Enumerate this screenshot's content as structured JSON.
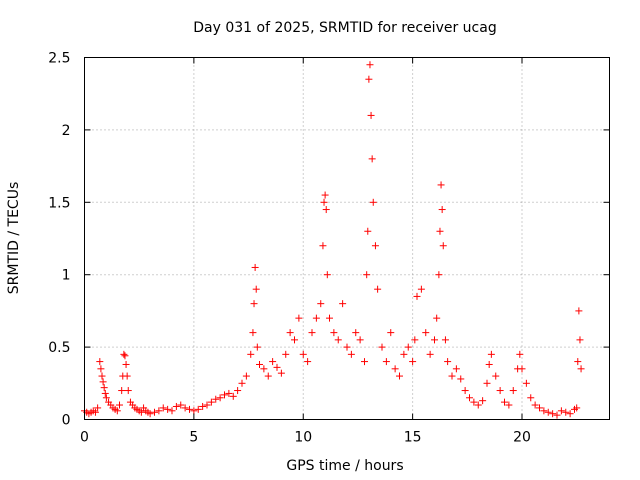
{
  "chart_data": {
    "type": "scatter",
    "title": "Day 031 of 2025, SRMTID for receiver ucag",
    "xlabel": "GPS time / hours",
    "ylabel": "SRMTID / TECUs",
    "xlim": [
      0,
      24
    ],
    "ylim": [
      0,
      2.5
    ],
    "x_ticks": [
      0,
      5,
      10,
      15,
      20
    ],
    "x_tick_labels": [
      "0",
      "5",
      "10",
      "15",
      "20"
    ],
    "y_ticks": [
      0,
      0.5,
      1,
      1.5,
      2,
      2.5
    ],
    "y_tick_labels": [
      "0",
      "0.5",
      "1",
      "1.5",
      "2",
      "2.5"
    ],
    "grid": true,
    "marker": "+",
    "colors": {
      "points": "#ff0000",
      "axes": "#000000",
      "grid": "#a0a0a0"
    },
    "series": [
      {
        "name": "SRMTID",
        "x": [
          0.0,
          0.1,
          0.2,
          0.3,
          0.4,
          0.5,
          0.6,
          0.7,
          0.75,
          0.8,
          0.85,
          0.9,
          0.95,
          1.0,
          1.1,
          1.2,
          1.3,
          1.4,
          1.5,
          1.6,
          1.7,
          1.75,
          1.8,
          1.85,
          1.9,
          1.95,
          2.0,
          2.1,
          2.2,
          2.3,
          2.4,
          2.5,
          2.6,
          2.7,
          2.8,
          2.9,
          3.0,
          3.2,
          3.4,
          3.6,
          3.8,
          4.0,
          4.2,
          4.4,
          4.6,
          4.8,
          5.0,
          5.2,
          5.4,
          5.6,
          5.8,
          6.0,
          6.2,
          6.4,
          6.6,
          6.8,
          7.0,
          7.2,
          7.4,
          7.6,
          7.7,
          7.75,
          7.8,
          7.85,
          7.9,
          8.0,
          8.2,
          8.4,
          8.6,
          8.8,
          9.0,
          9.2,
          9.4,
          9.6,
          9.8,
          10.0,
          10.2,
          10.4,
          10.6,
          10.8,
          10.9,
          10.95,
          11.0,
          11.05,
          11.1,
          11.2,
          11.4,
          11.6,
          11.8,
          12.0,
          12.2,
          12.4,
          12.6,
          12.8,
          12.9,
          12.95,
          13.0,
          13.05,
          13.1,
          13.15,
          13.2,
          13.3,
          13.4,
          13.6,
          13.8,
          14.0,
          14.2,
          14.4,
          14.6,
          14.8,
          15.0,
          15.1,
          15.2,
          15.4,
          15.6,
          15.8,
          16.0,
          16.1,
          16.2,
          16.25,
          16.3,
          16.35,
          16.4,
          16.5,
          16.6,
          16.8,
          17.0,
          17.2,
          17.4,
          17.6,
          17.8,
          18.0,
          18.2,
          18.4,
          18.5,
          18.6,
          18.8,
          19.0,
          19.2,
          19.4,
          19.6,
          19.8,
          19.9,
          20.0,
          20.2,
          20.4,
          20.6,
          20.8,
          21.0,
          21.2,
          21.4,
          21.6,
          21.8,
          22.0,
          22.2,
          22.4,
          22.5,
          22.55,
          22.6,
          22.65,
          22.7
        ],
        "values": [
          0.06,
          0.05,
          0.04,
          0.05,
          0.06,
          0.05,
          0.08,
          0.4,
          0.35,
          0.3,
          0.26,
          0.22,
          0.18,
          0.15,
          0.12,
          0.1,
          0.08,
          0.07,
          0.06,
          0.1,
          0.2,
          0.3,
          0.45,
          0.44,
          0.38,
          0.3,
          0.2,
          0.12,
          0.1,
          0.08,
          0.07,
          0.06,
          0.05,
          0.08,
          0.06,
          0.05,
          0.04,
          0.05,
          0.06,
          0.08,
          0.07,
          0.06,
          0.09,
          0.1,
          0.08,
          0.07,
          0.06,
          0.07,
          0.09,
          0.1,
          0.12,
          0.14,
          0.15,
          0.17,
          0.18,
          0.16,
          0.2,
          0.25,
          0.3,
          0.45,
          0.6,
          0.8,
          1.05,
          0.9,
          0.5,
          0.38,
          0.35,
          0.3,
          0.4,
          0.36,
          0.32,
          0.45,
          0.6,
          0.55,
          0.7,
          0.45,
          0.4,
          0.6,
          0.7,
          0.8,
          1.2,
          1.5,
          1.55,
          1.45,
          1.0,
          0.7,
          0.6,
          0.55,
          0.8,
          0.5,
          0.45,
          0.6,
          0.55,
          0.4,
          1.0,
          1.3,
          2.35,
          2.45,
          2.1,
          1.8,
          1.5,
          1.2,
          0.9,
          0.5,
          0.4,
          0.6,
          0.35,
          0.3,
          0.45,
          0.5,
          0.4,
          0.55,
          0.85,
          0.9,
          0.6,
          0.45,
          0.55,
          0.7,
          1.0,
          1.3,
          1.62,
          1.45,
          1.2,
          0.55,
          0.4,
          0.3,
          0.35,
          0.28,
          0.2,
          0.15,
          0.12,
          0.1,
          0.13,
          0.25,
          0.38,
          0.45,
          0.3,
          0.2,
          0.12,
          0.1,
          0.2,
          0.35,
          0.45,
          0.35,
          0.25,
          0.15,
          0.1,
          0.08,
          0.06,
          0.05,
          0.04,
          0.03,
          0.06,
          0.05,
          0.04,
          0.07,
          0.08,
          0.4,
          0.75,
          0.55,
          0.35
        ]
      }
    ]
  }
}
